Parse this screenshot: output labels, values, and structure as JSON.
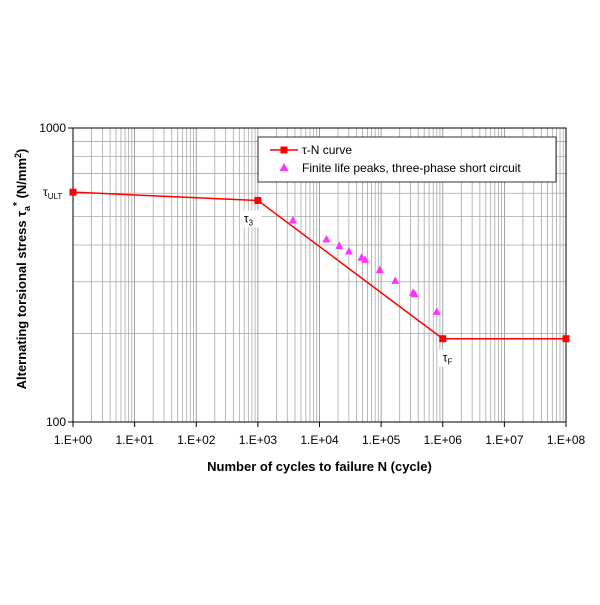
{
  "chart_data": {
    "type": "line",
    "x_scale": "log",
    "y_scale": "log",
    "xlim": [
      1,
      100000000
    ],
    "ylim": [
      100,
      1000
    ],
    "grid": true,
    "legend_placement": "top-right",
    "xlabel": "Number of cycles to failure N (cycle)",
    "ylabel": {
      "main": "Alternating torsional stress τ",
      "sub": "a",
      "sup": "*",
      "unit_prefix": " (N/mm",
      "unit_sup": "2",
      "unit_suffix": ")"
    },
    "x_tick_labels": [
      "1.E+00",
      "1.E+01",
      "1.E+02",
      "1.E+03",
      "1.E+04",
      "1.E+05",
      "1.E+06",
      "1.E+07",
      "1.E+08"
    ],
    "y_tick_labels": [
      {
        "value": 1000,
        "label": "1000"
      },
      {
        "value": 100,
        "label": "100"
      }
    ],
    "series": [
      {
        "name": "τ-N curve",
        "color": "#ff0000",
        "marker": "square",
        "points": [
          {
            "x": 1,
            "y": 605
          },
          {
            "x": 1000,
            "y": 567
          },
          {
            "x": 1000000,
            "y": 192
          },
          {
            "x": 100000000,
            "y": 192
          }
        ]
      },
      {
        "name": "Finite life peaks, three-phase short circuit",
        "color": "#ff33ff",
        "marker": "triangle",
        "points": [
          {
            "x": 3700,
            "y": 485
          },
          {
            "x": 13000,
            "y": 418
          },
          {
            "x": 21000,
            "y": 397
          },
          {
            "x": 30000,
            "y": 380
          },
          {
            "x": 48000,
            "y": 362
          },
          {
            "x": 55000,
            "y": 356
          },
          {
            "x": 95000,
            "y": 329
          },
          {
            "x": 170000,
            "y": 302
          },
          {
            "x": 330000,
            "y": 275
          },
          {
            "x": 350000,
            "y": 272
          },
          {
            "x": 800000,
            "y": 237
          }
        ]
      }
    ],
    "annotations": [
      {
        "main": "τ",
        "sub": "ULT",
        "x": 1,
        "y": 605
      },
      {
        "main": "τ",
        "sub": "3",
        "x": 1000,
        "y": 567
      },
      {
        "main": "τ",
        "sub": "F",
        "x": 1000000,
        "y": 192
      }
    ]
  }
}
